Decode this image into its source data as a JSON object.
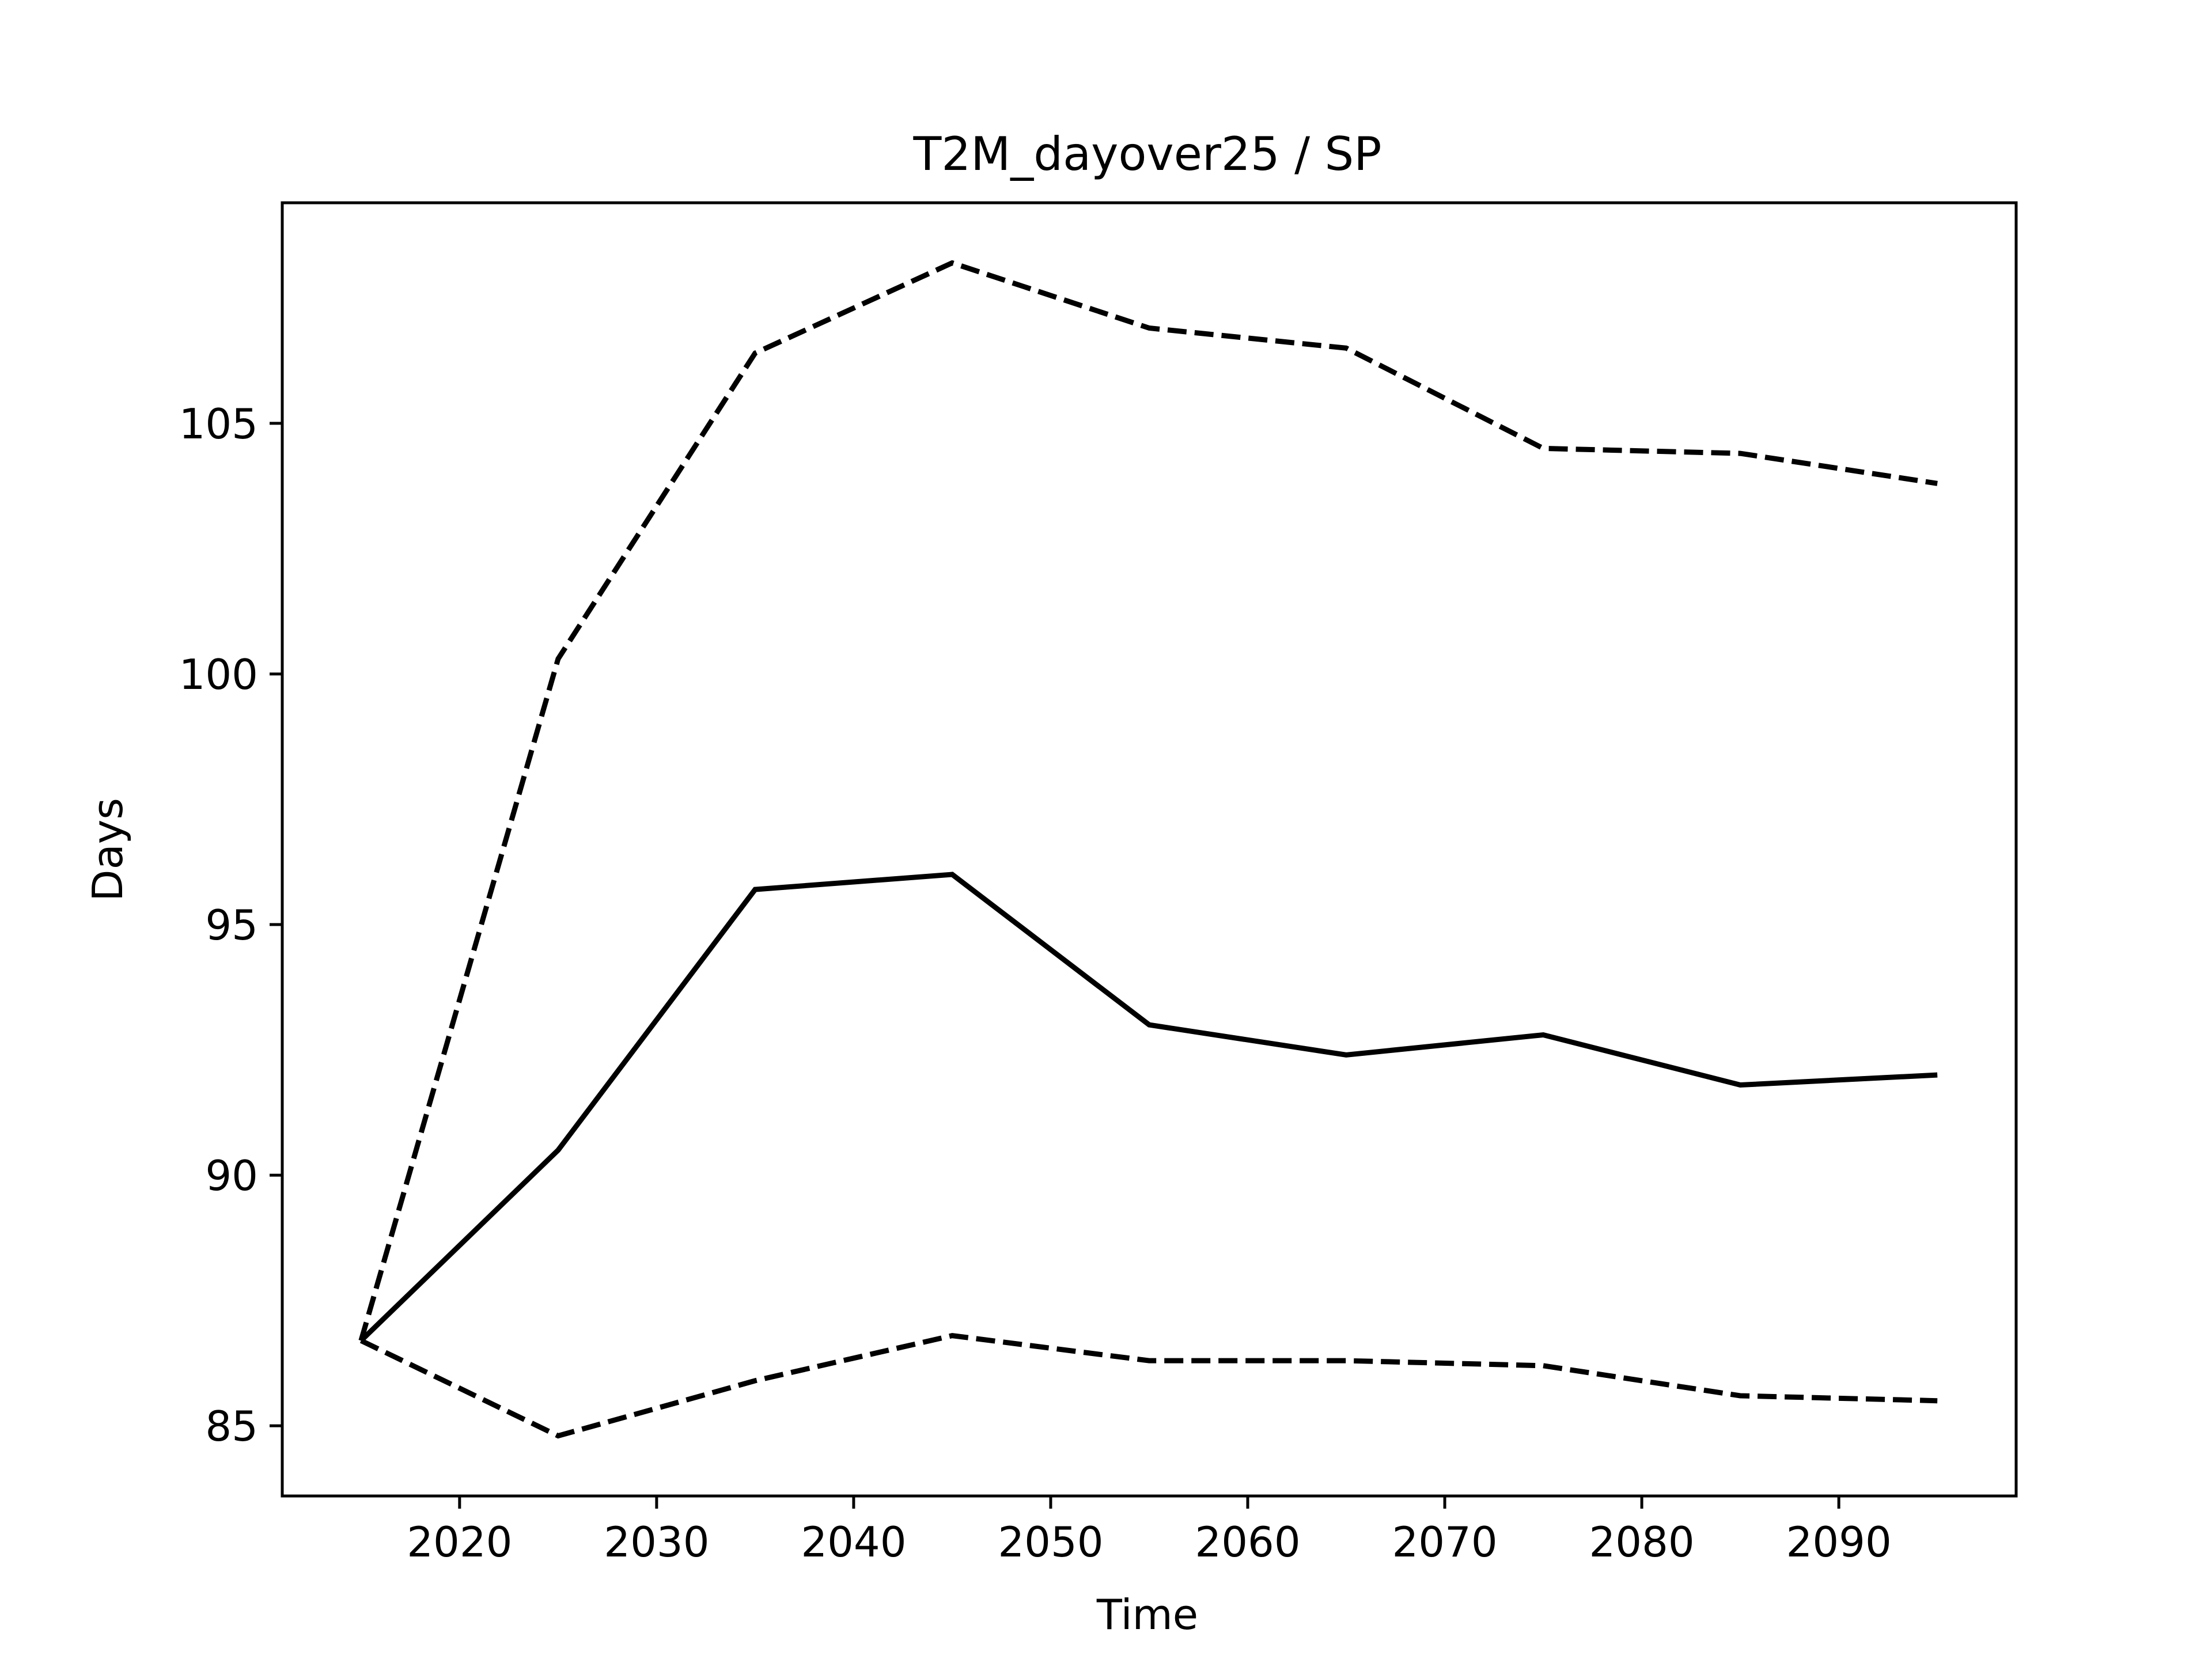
{
  "chart_data": {
    "type": "line",
    "title": "T2M_dayover25 / SP",
    "xlabel": "Time",
    "ylabel": "Days",
    "xlim": [
      2011,
      2099
    ],
    "ylim": [
      83.6,
      109.4
    ],
    "grid": false,
    "x_ticks": [
      2020,
      2030,
      2040,
      2050,
      2060,
      2070,
      2080,
      2090
    ],
    "y_ticks": [
      85,
      90,
      95,
      100,
      105
    ],
    "x": [
      2015,
      2025,
      2035,
      2045,
      2055,
      2065,
      2075,
      2085,
      2095
    ],
    "series": [
      {
        "style": "solid",
        "color": "#000000",
        "values": [
          86.7,
          90.5,
          95.7,
          96.0,
          93.0,
          92.4,
          92.8,
          91.8,
          92.0
        ]
      },
      {
        "style": "dashed",
        "color": "#000000",
        "values": [
          86.7,
          100.3,
          106.4,
          108.2,
          106.9,
          106.5,
          104.5,
          104.4,
          103.8
        ]
      },
      {
        "style": "dashed",
        "color": "#000000",
        "values": [
          86.7,
          84.8,
          85.9,
          86.8,
          86.3,
          86.3,
          86.2,
          85.6,
          85.5
        ]
      }
    ]
  }
}
